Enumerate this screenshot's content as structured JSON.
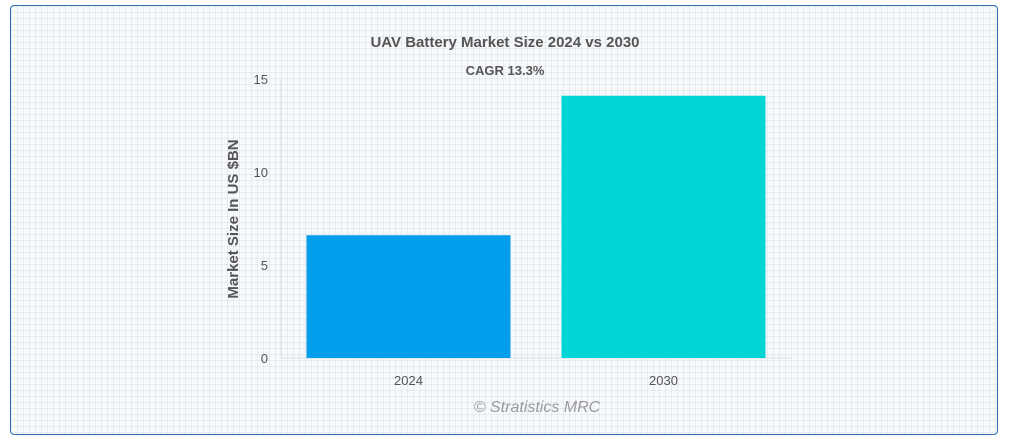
{
  "chart_data": {
    "type": "bar",
    "title": "UAV Battery Market Size 2024 vs 2030",
    "subtitle": "CAGR 13.3%",
    "xlabel": "",
    "ylabel": "Market Size In US $BN",
    "categories": [
      "2024",
      "2030"
    ],
    "values": [
      6.6,
      14.1
    ],
    "ylim": [
      0,
      15
    ],
    "yticks": [
      "0",
      "5",
      "10",
      "15"
    ],
    "colors": [
      "#039fec",
      "#01d4d4"
    ],
    "grid": false,
    "legend": "none",
    "watermark": "© Stratistics MRC"
  }
}
